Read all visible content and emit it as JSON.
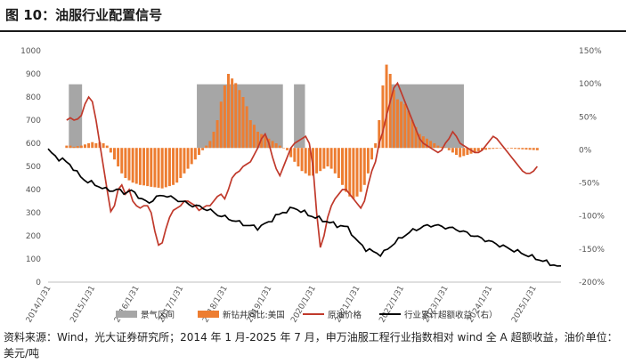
{
  "figure": {
    "title": "图 10：油服行业配置信号",
    "source": "资料来源：Wind，光大证券研究所；2014 年 1 月-2025 年 7 月，申万油服工程行业指数相对 wind 全 A 超额收益，油价单位：美元/吨"
  },
  "chart_data": {
    "type": "combo",
    "x_ticks": [
      "2014/1/31",
      "2015/1/31",
      "2016/1/31",
      "2017/1/31",
      "2018/1/31",
      "2019/1/31",
      "2020/1/31",
      "2021/1/31",
      "2022/1/31",
      "2023/1/31",
      "2024/1/31",
      "2025/1/31"
    ],
    "left_axis": {
      "ylim": [
        0,
        1000
      ],
      "ticks": [
        "0",
        "100",
        "200",
        "300",
        "400",
        "500",
        "600",
        "700",
        "800",
        "900",
        "1000"
      ]
    },
    "right_axis": {
      "ylim": [
        -200,
        150
      ],
      "ticks": [
        "-200%",
        "-150%",
        "-100%",
        "-50%",
        "0%",
        "50%",
        "100%",
        "150%"
      ]
    },
    "bar_baseline": 580,
    "legend": [
      "景气区间",
      "新钻井同比:美国",
      "原油价格",
      "行业累计超额收益（右）"
    ],
    "colors": {
      "boom": "#a6a6a6",
      "rig": "#ed7d31",
      "oil": "#c0392b",
      "excess": "#000000"
    },
    "boom_periods": [
      {
        "start": 2014.55,
        "end": 2014.85
      },
      {
        "start": 2017.45,
        "end": 2019.4
      },
      {
        "start": 2019.65,
        "end": 2019.9
      },
      {
        "start": 2021.85,
        "end": 2023.5
      }
    ],
    "boom_top": 855,
    "rig_x_start": 2014.0,
    "rig_x_step": 0.0833,
    "rig_values": [
      590,
      590,
      585,
      588,
      590,
      595,
      600,
      605,
      600,
      605,
      600,
      590,
      560,
      530,
      500,
      470,
      450,
      440,
      430,
      425,
      420,
      418,
      415,
      412,
      410,
      408,
      405,
      410,
      415,
      420,
      430,
      450,
      470,
      490,
      510,
      530,
      550,
      570,
      590,
      610,
      650,
      700,
      780,
      850,
      900,
      880,
      860,
      830,
      800,
      760,
      700,
      680,
      650,
      640,
      630,
      620,
      610,
      600,
      590,
      580,
      570,
      540,
      520,
      500,
      480,
      470,
      460,
      460,
      470,
      480,
      490,
      500,
      490,
      470,
      450,
      420,
      390,
      370,
      360,
      370,
      390,
      420,
      470,
      530,
      600,
      700,
      850,
      940,
      900,
      830,
      790,
      780,
      770,
      740,
      700,
      670,
      640,
      630,
      620,
      610,
      600,
      590,
      585,
      582,
      570,
      560,
      550,
      540,
      545,
      550,
      555,
      560,
      565,
      570,
      572,
      575,
      576,
      577,
      578,
      579,
      578,
      577,
      576,
      575,
      574,
      573,
      572,
      571,
      570
    ],
    "oil_values": [
      700,
      710,
      700,
      705,
      720,
      770,
      800,
      780,
      700,
      600,
      500,
      400,
      305,
      330,
      400,
      420,
      380,
      400,
      350,
      330,
      320,
      330,
      330,
      300,
      220,
      160,
      170,
      230,
      280,
      310,
      320,
      330,
      350,
      350,
      340,
      330,
      310,
      320,
      330,
      330,
      350,
      370,
      380,
      360,
      400,
      450,
      470,
      480,
      500,
      510,
      520,
      550,
      580,
      620,
      640,
      600,
      540,
      490,
      460,
      500,
      540,
      580,
      600,
      610,
      620,
      630,
      600,
      500,
      300,
      150,
      200,
      280,
      330,
      360,
      380,
      400,
      400,
      380,
      360,
      340,
      320,
      350,
      420,
      480,
      520,
      600,
      650,
      720,
      780,
      840,
      860,
      820,
      780,
      740,
      700,
      660,
      620,
      600,
      590,
      580,
      570,
      560,
      570,
      600,
      620,
      650,
      630,
      600,
      590,
      580,
      570,
      560,
      560,
      570,
      590,
      610,
      630,
      620,
      600,
      580,
      560,
      540,
      520,
      500,
      480,
      470,
      470,
      480,
      500
    ],
    "excess_values": [
      0,
      -5,
      -10,
      -13,
      -15,
      -18,
      -22,
      -28,
      -35,
      -40,
      -45,
      -48,
      -50,
      -52,
      -55,
      -58,
      -60,
      -60,
      -62,
      -60,
      -62,
      -64,
      -64,
      -62,
      -65,
      -70,
      -75,
      -78,
      -80,
      -75,
      -72,
      -70,
      -68,
      -70,
      -72,
      -74,
      -76,
      -78,
      -80,
      -82,
      -84,
      -85,
      -86,
      -88,
      -90,
      -92,
      -95,
      -98,
      -100,
      -102,
      -104,
      -106,
      -108,
      -110,
      -112,
      -114,
      -115,
      -116,
      -118,
      -115,
      -112,
      -110,
      -105,
      -100,
      -98,
      -95,
      -92,
      -90,
      -88,
      -90,
      -92,
      -95,
      -98,
      -100,
      -102,
      -104,
      -106,
      -108,
      -110,
      -112,
      -114,
      -115,
      -116,
      -118,
      -125,
      -135,
      -140,
      -145,
      -150,
      -152,
      -154,
      -156,
      -158,
      -155,
      -150,
      -145,
      -140,
      -136,
      -132,
      -128,
      -125,
      -122,
      -120,
      -118,
      -116,
      -115,
      -114,
      -114,
      -115,
      -116,
      -117,
      -118,
      -119,
      -120,
      -122,
      -124,
      -126,
      -128,
      -130,
      -132,
      -134,
      -136,
      -138,
      -140,
      -142,
      -144,
      -146,
      -148,
      -150,
      -152,
      -154,
      -156,
      -158,
      -160,
      -162,
      -164,
      -166,
      -168,
      -170,
      -172,
      -174,
      -176,
      -178
    ]
  }
}
